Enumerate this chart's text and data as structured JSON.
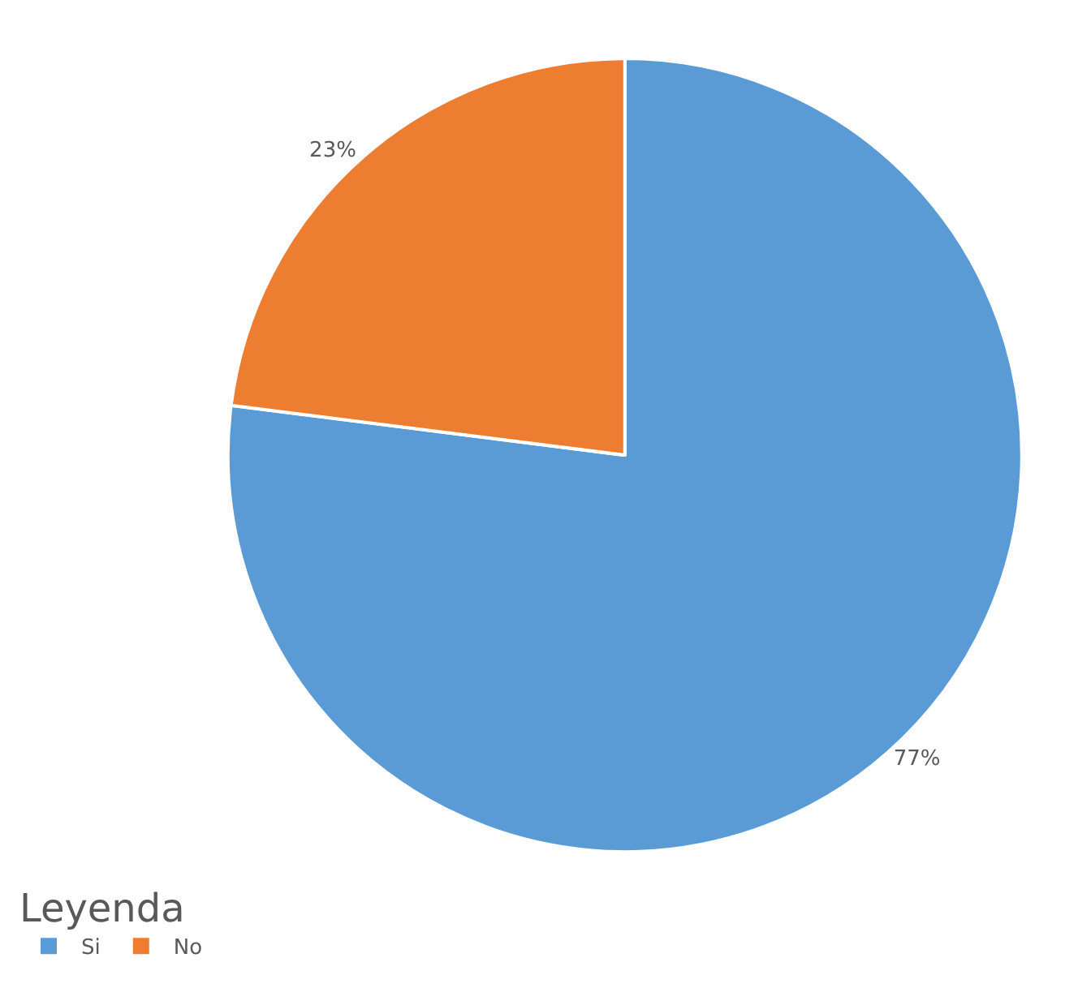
{
  "chart_data": {
    "type": "pie",
    "categories": [
      "Si",
      "No"
    ],
    "values": [
      77,
      23
    ],
    "colors": [
      "#5b9bd5",
      "#ed7d31"
    ],
    "value_labels": [
      "77%",
      "23%"
    ],
    "legend_title": "Leyenda",
    "legend": "bottom left"
  }
}
